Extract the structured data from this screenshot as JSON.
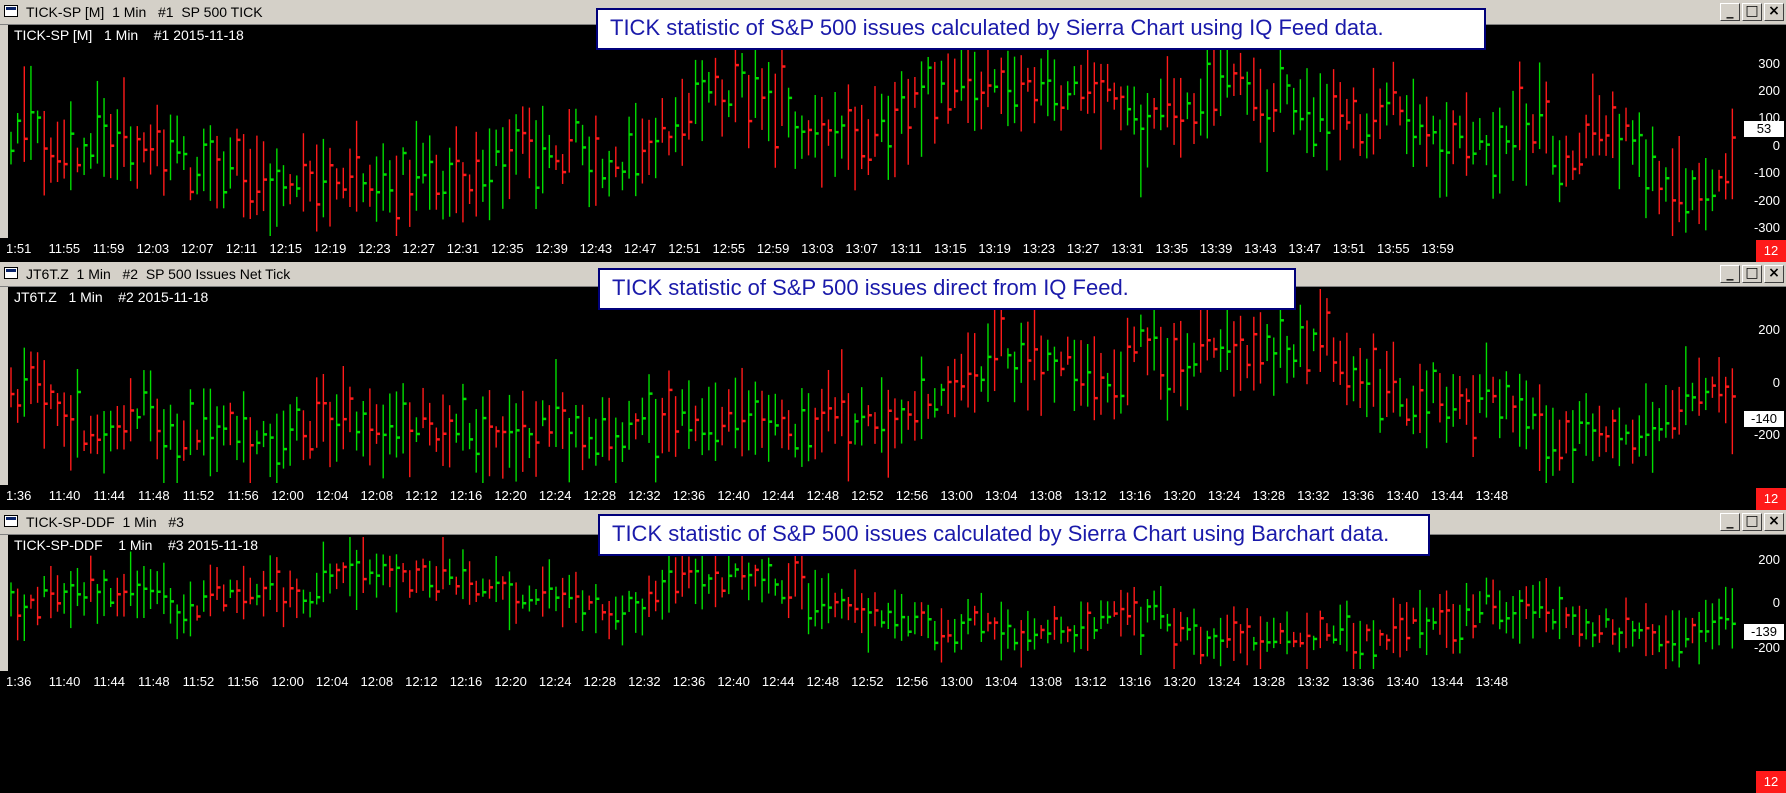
{
  "panels": [
    {
      "window_title": "TICK-SP [M]  1 Min   #1  SP 500 TICK",
      "chart_label": "TICK-SP [M]   1 Min    #1 2015-11-18",
      "annotation": "TICK statistic of S&P 500 issues calculated by Sierra Chart using IQ Feed data.",
      "y_tick_labels": [
        "300",
        "200",
        "100",
        "0",
        "-100",
        "-200",
        "-300"
      ],
      "price_label": "53",
      "bar_counter": "12",
      "x_tick_labels": [
        "1:51",
        "11:55",
        "11:59",
        "12:03",
        "12:07",
        "12:11",
        "12:15",
        "12:19",
        "12:23",
        "12:27",
        "12:31",
        "12:35",
        "12:39",
        "12:43",
        "12:47",
        "12:51",
        "12:55",
        "12:59",
        "13:03",
        "13:07",
        "13:11",
        "13:15",
        "13:19",
        "13:23",
        "13:27",
        "13:31",
        "13:35",
        "13:39",
        "13:43",
        "13:47",
        "13:51",
        "13:55",
        "13:59"
      ]
    },
    {
      "window_title": "JT6T.Z  1 Min   #2  SP 500 Issues Net Tick",
      "chart_label": "JT6T.Z   1 Min    #2 2015-11-18",
      "annotation": "TICK statistic of S&P 500 issues direct from IQ Feed.",
      "y_tick_labels": [
        "200",
        "0",
        "-200"
      ],
      "price_label": "-140",
      "bar_counter": "12",
      "x_tick_labels": [
        "1:36",
        "11:40",
        "11:44",
        "11:48",
        "11:52",
        "11:56",
        "12:00",
        "12:04",
        "12:08",
        "12:12",
        "12:16",
        "12:20",
        "12:24",
        "12:28",
        "12:32",
        "12:36",
        "12:40",
        "12:44",
        "12:48",
        "12:52",
        "12:56",
        "13:00",
        "13:04",
        "13:08",
        "13:12",
        "13:16",
        "13:20",
        "13:24",
        "13:28",
        "13:32",
        "13:36",
        "13:40",
        "13:44",
        "13:48"
      ]
    },
    {
      "window_title": "TICK-SP-DDF  1 Min   #3",
      "chart_label": "TICK-SP-DDF    1 Min    #3 2015-11-18",
      "annotation": "TICK statistic of S&P 500 issues calculated by Sierra Chart using Barchart data.",
      "y_tick_labels": [
        "200",
        "0",
        "-200"
      ],
      "price_label": "-139",
      "bar_counter": "12",
      "x_tick_labels": [
        "1:36",
        "11:40",
        "11:44",
        "11:48",
        "11:52",
        "11:56",
        "12:00",
        "12:04",
        "12:08",
        "12:12",
        "12:16",
        "12:20",
        "12:24",
        "12:28",
        "12:32",
        "12:36",
        "12:40",
        "12:44",
        "12:48",
        "12:52",
        "12:56",
        "13:00",
        "13:04",
        "13:08",
        "13:12",
        "13:16",
        "13:20",
        "13:24",
        "13:28",
        "13:32",
        "13:36",
        "13:40",
        "13:44",
        "13:48"
      ]
    }
  ],
  "window_buttons": {
    "minimize": "_",
    "maximize": "□",
    "close": "×"
  },
  "colors": {
    "up_bar": "#00dd00",
    "down_bar": "#ff1a1a",
    "annotation_text": "#1a1aaa",
    "annotation_border": "#00007a"
  }
}
